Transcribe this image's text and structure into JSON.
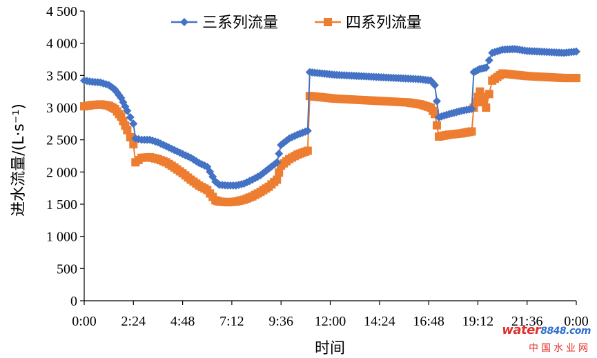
{
  "chart_data": {
    "type": "line",
    "xlabel": "时间",
    "ylabel": "进水流量/(L·s⁻¹)",
    "ylim": [
      0,
      4500
    ],
    "yticks": [
      0,
      500,
      1000,
      1500,
      2000,
      2500,
      3000,
      3500,
      4000,
      4500
    ],
    "ytick_labels": [
      "0",
      "500",
      "1 000",
      "1 500",
      "2 000",
      "2 500",
      "3 000",
      "3 500",
      "4 000",
      "4 500"
    ],
    "xlim": [
      0,
      24
    ],
    "xtick_labels": [
      "0:00",
      "2:24",
      "4:48",
      "7:12",
      "9:36",
      "12:00",
      "14:24",
      "16:48",
      "19:12",
      "21:36",
      "0:00"
    ],
    "legend_position": "top",
    "grid": false,
    "series": [
      {
        "name": "三系列流量",
        "color": "#4472c4",
        "marker": "diamond",
        "x": [
          0.0,
          0.4,
          0.8,
          1.2,
          1.5,
          1.8,
          2.1,
          2.4,
          2.5,
          2.8,
          3.2,
          3.6,
          4.0,
          4.4,
          4.8,
          5.2,
          5.6,
          6.0,
          6.4,
          6.6,
          7.0,
          7.4,
          7.8,
          8.2,
          8.6,
          9.0,
          9.4,
          9.6,
          10.0,
          10.4,
          10.9,
          11.0,
          11.6,
          12.2,
          12.8,
          13.4,
          14.0,
          14.6,
          15.2,
          15.8,
          16.4,
          16.9,
          17.1,
          17.3,
          17.8,
          18.4,
          18.9,
          19.0,
          19.3,
          19.6,
          19.9,
          20.4,
          21.0,
          21.6,
          22.2,
          22.8,
          23.4,
          24.0
        ],
        "y": [
          3420,
          3400,
          3390,
          3350,
          3280,
          3150,
          2950,
          2750,
          2520,
          2500,
          2500,
          2460,
          2400,
          2340,
          2280,
          2220,
          2140,
          2080,
          1850,
          1800,
          1790,
          1790,
          1820,
          1880,
          1950,
          2050,
          2150,
          2420,
          2520,
          2580,
          2640,
          3550,
          3530,
          3510,
          3500,
          3490,
          3480,
          3470,
          3460,
          3450,
          3440,
          3420,
          3350,
          2850,
          2900,
          2950,
          2980,
          3550,
          3600,
          3620,
          3850,
          3900,
          3910,
          3880,
          3870,
          3860,
          3850,
          3870
        ]
      },
      {
        "name": "四系列流量",
        "color": "#ed7d31",
        "marker": "square",
        "x": [
          0.0,
          0.4,
          0.8,
          1.2,
          1.5,
          1.8,
          2.1,
          2.4,
          2.5,
          2.8,
          3.2,
          3.6,
          4.0,
          4.4,
          4.8,
          5.2,
          5.6,
          6.0,
          6.4,
          6.6,
          7.0,
          7.4,
          7.8,
          8.2,
          8.6,
          9.0,
          9.4,
          9.6,
          10.0,
          10.4,
          10.9,
          11.0,
          11.6,
          12.2,
          12.8,
          13.4,
          14.0,
          14.6,
          15.2,
          15.8,
          16.4,
          16.9,
          17.1,
          17.3,
          17.8,
          18.4,
          18.9,
          19.0,
          19.3,
          19.6,
          19.9,
          20.4,
          21.0,
          21.6,
          22.2,
          22.8,
          23.4,
          24.0
        ],
        "y": [
          3020,
          3040,
          3050,
          3030,
          2980,
          2860,
          2650,
          2430,
          2150,
          2220,
          2230,
          2200,
          2150,
          2070,
          1980,
          1880,
          1790,
          1720,
          1560,
          1540,
          1530,
          1540,
          1570,
          1620,
          1690,
          1770,
          1880,
          2100,
          2200,
          2270,
          2330,
          3180,
          3160,
          3140,
          3130,
          3120,
          3110,
          3100,
          3090,
          3080,
          3050,
          3000,
          2900,
          2550,
          2580,
          2600,
          2630,
          3000,
          3250,
          3000,
          3420,
          3530,
          3510,
          3490,
          3480,
          3470,
          3460,
          3460
        ]
      }
    ]
  },
  "watermark": {
    "line1_word": "water",
    "line1_number": "8848",
    "line1_suffix": ".com",
    "line2": "中国水业网"
  }
}
